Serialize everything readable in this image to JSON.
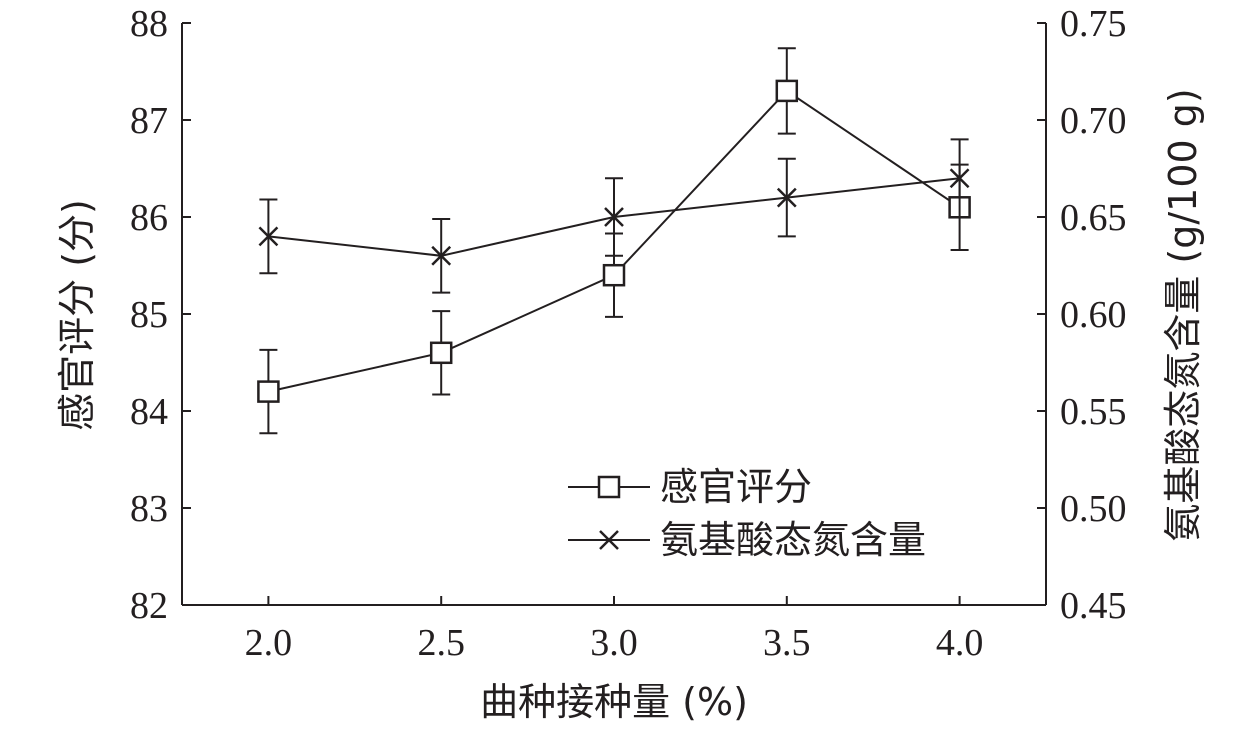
{
  "chart_data": {
    "type": "line",
    "x": [
      2.0,
      2.5,
      3.0,
      3.5,
      4.0
    ],
    "x_tick_labels": [
      "2.0",
      "2.5",
      "3.0",
      "3.5",
      "4.0"
    ],
    "xlim": [
      1.75,
      4.25
    ],
    "xlabel": "曲种接种量 (%)",
    "ylabel_left": "感官评分 (分)",
    "ylim_left": [
      82,
      88
    ],
    "y_left_ticks": [
      "82",
      "83",
      "84",
      "85",
      "86",
      "87",
      "88"
    ],
    "ylabel_right": "氨基酸态氮含量 (g/100 g)",
    "ylim_right": [
      0.45,
      0.75
    ],
    "y_right_ticks": [
      "0.45",
      "0.50",
      "0.55",
      "0.60",
      "0.65",
      "0.70",
      "0.75"
    ],
    "legend_position": "lower-right",
    "grid": false,
    "series": [
      {
        "name": "感官评分",
        "axis": "left",
        "marker": "square",
        "values": [
          84.2,
          84.6,
          85.4,
          87.3,
          86.1
        ],
        "errors": [
          0.43,
          0.43,
          0.43,
          0.44,
          0.44
        ]
      },
      {
        "name": "氨基酸态氮含量",
        "axis": "right",
        "marker": "x",
        "values": [
          0.64,
          0.63,
          0.65,
          0.66,
          0.67
        ],
        "errors": [
          0.019,
          0.019,
          0.02,
          0.02,
          0.02
        ]
      }
    ]
  }
}
